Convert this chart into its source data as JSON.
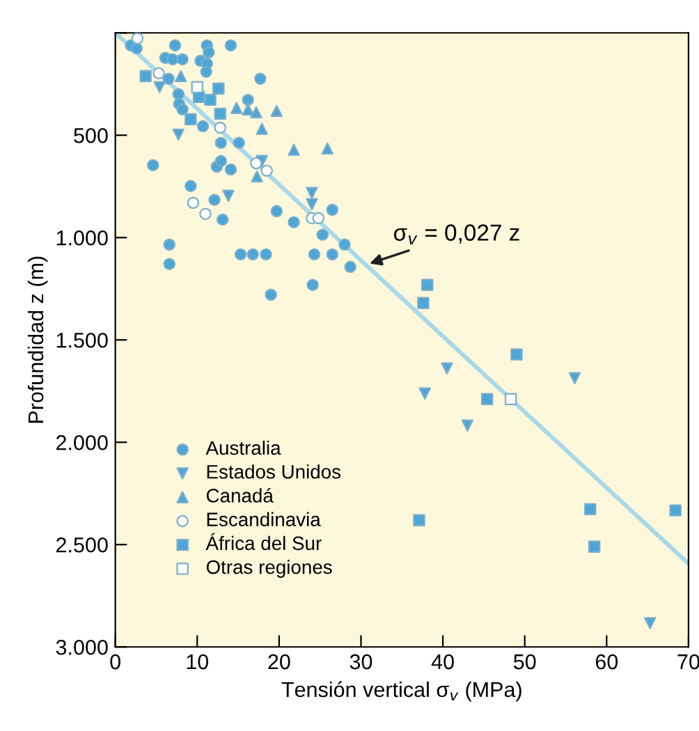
{
  "chart_data": {
    "type": "scatter",
    "xlabel": "Tensión vertical σ$_{v}$ (MPa)",
    "ylabel": "Profundidad z (m)",
    "xlim": [
      0,
      70
    ],
    "ylim": [
      3000,
      0
    ],
    "xticks": [
      0,
      10,
      20,
      30,
      40,
      50,
      60,
      70
    ],
    "yticks": [
      {
        "value": 0,
        "label": null
      },
      {
        "value": 500,
        "label": "500"
      },
      {
        "value": 1000,
        "label": "1.000"
      },
      {
        "value": 1500,
        "label": "1.500"
      },
      {
        "value": 2000,
        "label": "2.000"
      },
      {
        "value": 2500,
        "label": "2.500"
      },
      {
        "value": 3000,
        "label": "3.000"
      }
    ],
    "grid": false,
    "legend": "bottom left",
    "series": [
      {
        "name": "Australia",
        "marker": "circle",
        "color": "#4ea6d8",
        "x": [
          1.9,
          2.6,
          7.3,
          11.2,
          14.1,
          11.4,
          6.1,
          7.0,
          8.2,
          10.4,
          11.2,
          11.1,
          6.5,
          7.7,
          7.8,
          8.2,
          10.7,
          17.7,
          16.2,
          12.9,
          15.1,
          12.4,
          12.9,
          14.1,
          4.6,
          9.2,
          12.1,
          13.1,
          6.6,
          6.6,
          15.3,
          16.8,
          18.4,
          19.0,
          19.7,
          21.8,
          26.5,
          25.3,
          24.3,
          26.5,
          28.0,
          28.7,
          24.1
        ],
        "values": [
          61,
          75,
          61,
          61,
          61,
          95,
          122,
          129,
          129,
          136,
          150,
          190,
          224,
          299,
          347,
          374,
          456,
          224,
          327,
          537,
          537,
          653,
          626,
          667,
          646,
          748,
          816,
          912,
          1034,
          1129,
          1082,
          1082,
          1082,
          1279,
          871,
          925,
          864,
          986,
          1082,
          1082,
          1034,
          1143,
          1231
        ]
      },
      {
        "name": "Estados Unidos",
        "marker": "triangle_down",
        "color": "#4ea6d8",
        "x": [
          5.4,
          7.7,
          13.8,
          17.9,
          24.0,
          24.0,
          40.5,
          37.8,
          56.1,
          43.0,
          65.3
        ],
        "values": [
          265,
          497,
          796,
          626,
          782,
          837,
          1639,
          1762,
          1687,
          1918,
          2884
        ]
      },
      {
        "name": "Canadá",
        "marker": "triangle",
        "color": "#4ea6d8",
        "x": [
          8.0,
          14.8,
          16.2,
          17.2,
          19.7,
          17.9,
          21.8,
          25.9,
          17.3
        ],
        "values": [
          211,
          367,
          374,
          388,
          381,
          469,
          571,
          565,
          701
        ]
      },
      {
        "name": "Escandinavia",
        "marker": "circle",
        "color": "#ffffff",
        "x": [
          2.7,
          5.3,
          12.8,
          17.2,
          18.5,
          9.5,
          11.0,
          24.0,
          24.8
        ],
        "values": [
          27,
          197,
          463,
          637,
          673,
          830,
          884,
          905,
          905
        ]
      },
      {
        "name": "África del Sur",
        "marker": "square",
        "color": "#4ea6d8",
        "x": [
          3.7,
          12.6,
          12.8,
          9.2,
          10.2,
          11.6,
          38.1,
          37.6,
          49.0,
          45.4,
          37.1,
          58.0,
          58.5,
          68.4
        ],
        "values": [
          211,
          272,
          395,
          422,
          313,
          327,
          1231,
          1320,
          1571,
          1789,
          2381,
          2327,
          2510,
          2333
        ]
      },
      {
        "name": "Otras regiones",
        "marker": "square",
        "color": "#ffffff",
        "x": [
          10.0,
          48.3
        ],
        "values": [
          265,
          1789
        ]
      },
      {
        "type": "line",
        "color": "#a8d8ea",
        "x": [
          0,
          70
        ],
        "values": [
          0,
          2593
        ]
      }
    ],
    "annotations": [
      {
        "text": "σ$_{v}$ = 0,027 z",
        "x": 30.6,
        "y": 1133
      }
    ]
  }
}
